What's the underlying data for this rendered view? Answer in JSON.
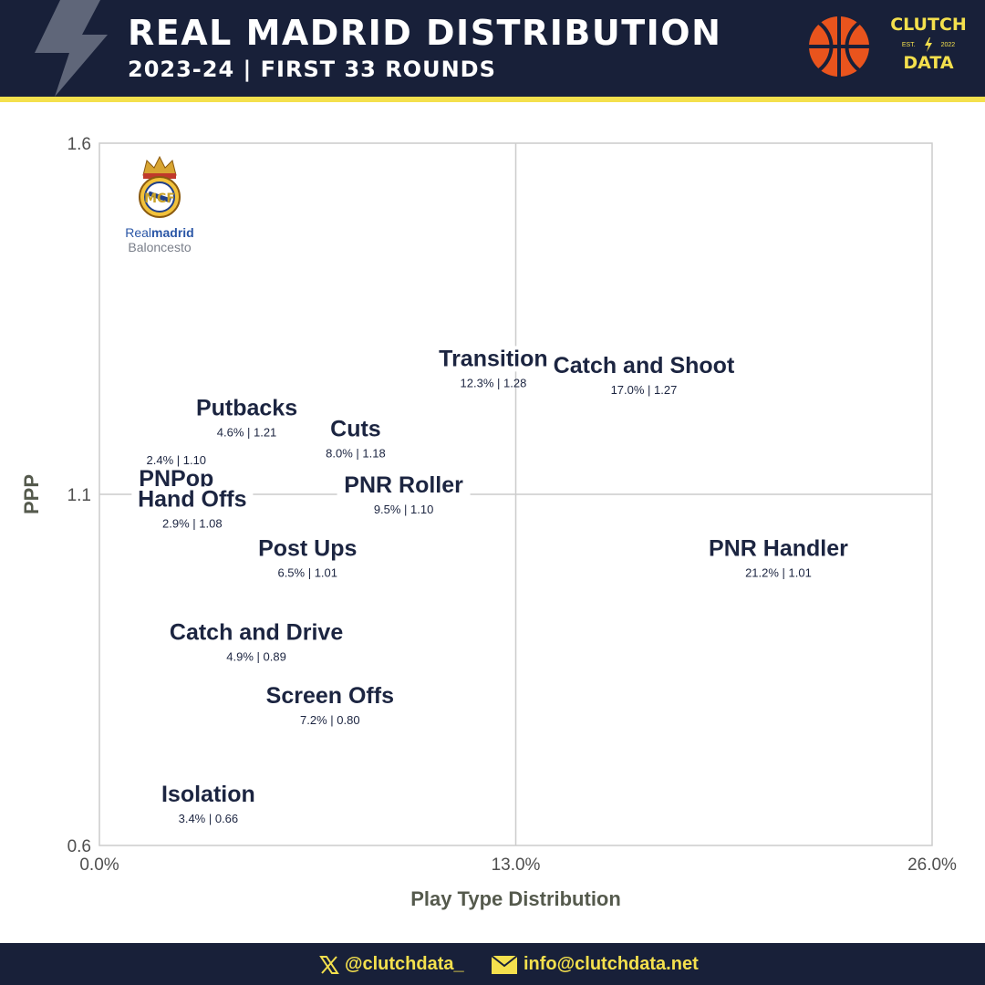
{
  "header": {
    "title": "REAL MADRID DISTRIBUTION",
    "subtitle": "2023-24 | FIRST 33 ROUNDS",
    "brand_top": "CLUTCH",
    "brand_est": "EST.",
    "brand_year": "2022",
    "brand_bottom": "DATA"
  },
  "crest": {
    "name_a": "Real",
    "name_b": "madrid",
    "sub": "Baloncesto"
  },
  "footer": {
    "twitter": "@clutchdata_",
    "email": "info@clutchdata.net"
  },
  "colors": {
    "navy": "#182039",
    "accent": "#f4e04d",
    "label": "#1c2541",
    "axis_text": "#4f4f4f",
    "grid": "#cccccc"
  },
  "chart_data": {
    "type": "scatter",
    "xlabel": "Play Type Distribution",
    "ylabel": "PPP",
    "xlim": [
      0,
      26
    ],
    "ylim": [
      0.6,
      1.6
    ],
    "x_ticks": [
      "0.0%",
      "13.0%",
      "26.0%"
    ],
    "y_ticks": [
      "0.6",
      "1.1",
      "1.6"
    ],
    "grid": "quadrant lines at 13.0% and 1.1",
    "points": [
      {
        "label": "Transition",
        "x": 12.3,
        "y": 1.28,
        "detail": "12.3% | 1.28"
      },
      {
        "label": "Catch and Shoot",
        "x": 17.0,
        "y": 1.27,
        "detail": "17.0% | 1.27"
      },
      {
        "label": "Putbacks",
        "x": 4.6,
        "y": 1.21,
        "detail": "4.6% | 1.21"
      },
      {
        "label": "Cuts",
        "x": 8.0,
        "y": 1.18,
        "detail": "8.0% | 1.18"
      },
      {
        "label": "PNPop",
        "x": 2.4,
        "y": 1.1,
        "detail": "2.4% | 1.10"
      },
      {
        "label": "PNR Roller",
        "x": 9.5,
        "y": 1.1,
        "detail": "9.5% | 1.10"
      },
      {
        "label": "Hand Offs",
        "x": 2.9,
        "y": 1.08,
        "detail": "2.9% | 1.08"
      },
      {
        "label": "PNR Handler",
        "x": 21.2,
        "y": 1.01,
        "detail": "21.2% | 1.01"
      },
      {
        "label": "Post Ups",
        "x": 6.5,
        "y": 1.01,
        "detail": "6.5% | 1.01"
      },
      {
        "label": "Catch and Drive",
        "x": 4.9,
        "y": 0.89,
        "detail": "4.9% | 0.89"
      },
      {
        "label": "Screen Offs",
        "x": 7.2,
        "y": 0.8,
        "detail": "7.2% | 0.80"
      },
      {
        "label": "Isolation",
        "x": 3.4,
        "y": 0.66,
        "detail": "3.4% | 0.66"
      }
    ]
  }
}
